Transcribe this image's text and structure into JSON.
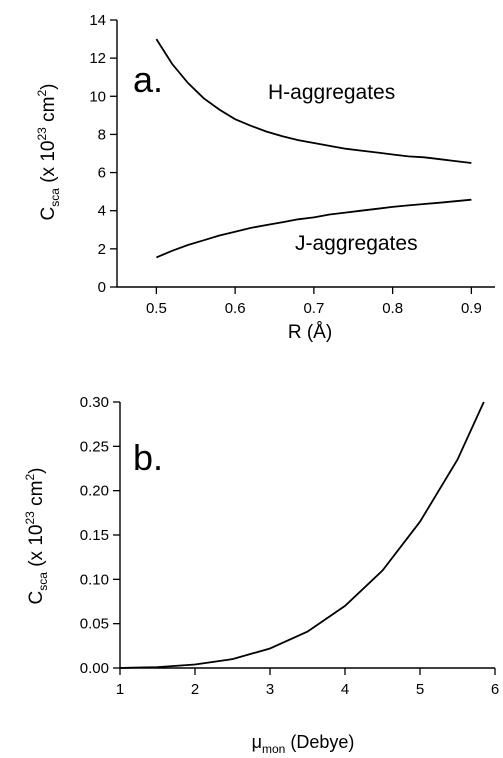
{
  "chart_data": [
    {
      "type": "line",
      "panel_label": "a.",
      "xlabel": "R (Å)",
      "ylabel": {
        "base": "C",
        "sub": "sca",
        "pre": " (x 10",
        "sup": "23",
        "post": " cm",
        "sup2": "2",
        "end": ")"
      },
      "xlim": [
        0.45,
        0.93
      ],
      "ylim": [
        0,
        14
      ],
      "xticks": [
        0.5,
        0.6,
        0.7,
        0.8,
        0.9
      ],
      "xtick_labels": [
        "0.5",
        "0.6",
        "0.7",
        "0.8",
        "0.9"
      ],
      "yticks": [
        0,
        2,
        4,
        6,
        8,
        10,
        12,
        14
      ],
      "ytick_labels": [
        "0",
        "2",
        "4",
        "6",
        "8",
        "10",
        "12",
        "14"
      ],
      "grid": false,
      "series": [
        {
          "label": "H-aggregates",
          "x": [
            0.5,
            0.52,
            0.54,
            0.56,
            0.58,
            0.6,
            0.62,
            0.64,
            0.66,
            0.68,
            0.7,
            0.72,
            0.74,
            0.76,
            0.78,
            0.8,
            0.82,
            0.84,
            0.86,
            0.88,
            0.9
          ],
          "y": [
            13.0,
            11.7,
            10.7,
            9.9,
            9.3,
            8.8,
            8.45,
            8.15,
            7.9,
            7.7,
            7.55,
            7.4,
            7.25,
            7.15,
            7.05,
            6.95,
            6.85,
            6.8,
            6.7,
            6.6,
            6.5
          ]
        },
        {
          "label": "J-aggregates",
          "x": [
            0.5,
            0.52,
            0.54,
            0.56,
            0.58,
            0.6,
            0.62,
            0.64,
            0.66,
            0.68,
            0.7,
            0.72,
            0.74,
            0.76,
            0.78,
            0.8,
            0.82,
            0.84,
            0.86,
            0.88,
            0.9
          ],
          "y": [
            1.55,
            1.9,
            2.2,
            2.45,
            2.7,
            2.9,
            3.1,
            3.25,
            3.4,
            3.55,
            3.65,
            3.8,
            3.9,
            4.0,
            4.1,
            4.2,
            4.28,
            4.35,
            4.42,
            4.5,
            4.58
          ]
        }
      ]
    },
    {
      "type": "line",
      "panel_label": "b.",
      "xlabel": {
        "base": "μ",
        "sub": "mon",
        "post": " (Debye)"
      },
      "ylabel": {
        "base": "C",
        "sub": "sca",
        "pre": " (x 10",
        "sup": "23",
        "post": " cm",
        "sup2": "2",
        "end": ")"
      },
      "xlim": [
        1,
        6
      ],
      "ylim": [
        0,
        0.3
      ],
      "xticks": [
        1,
        2,
        3,
        4,
        5,
        6
      ],
      "xtick_labels": [
        "1",
        "2",
        "3",
        "4",
        "5",
        "6"
      ],
      "yticks": [
        0,
        0.05,
        0.1,
        0.15,
        0.2,
        0.25,
        0.3
      ],
      "ytick_labels": [
        "0.00",
        "0.05",
        "0.10",
        "0.15",
        "0.20",
        "0.25",
        "0.30"
      ],
      "grid": false,
      "series": [
        {
          "x": [
            1.0,
            1.5,
            2.0,
            2.5,
            3.0,
            3.5,
            4.0,
            4.5,
            5.0,
            5.5,
            5.85
          ],
          "y": [
            0.0,
            0.001,
            0.004,
            0.01,
            0.022,
            0.041,
            0.07,
            0.11,
            0.165,
            0.235,
            0.3
          ]
        }
      ]
    }
  ]
}
